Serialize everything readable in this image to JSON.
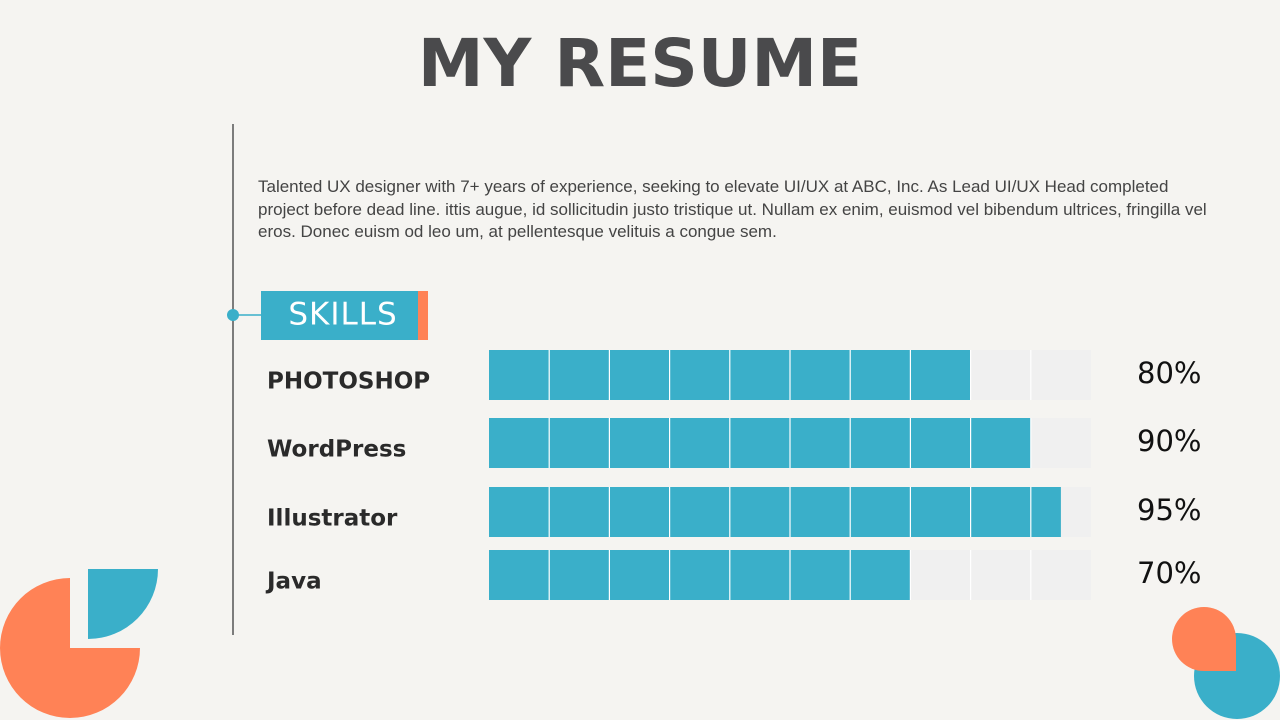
{
  "title": "MY RESUME",
  "description": "Talented UX designer with 7+ years of experience, seeking to elevate UI/UX at ABC, Inc. As Lead UI/UX Head completed project before dead line. ittis augue, id sollicitudin justo tristique ut. Nullam ex enim, euismod vel bibendum ultrices, fringilla vel eros. Donec euism od leo um, at pellentesque velituis a congue sem.",
  "section": "SKILLS",
  "chart_data": {
    "type": "bar",
    "orientation": "horizontal",
    "categories": [
      "PHOTOSHOP",
      "WordPress",
      "Illustrator",
      "Java"
    ],
    "values": [
      80,
      90,
      95,
      70
    ],
    "value_labels": [
      "80%",
      "90%",
      "95%",
      "70%"
    ],
    "xlim": [
      0,
      100
    ],
    "color": "#3aafc9",
    "track_color": "#f0f0f0"
  }
}
